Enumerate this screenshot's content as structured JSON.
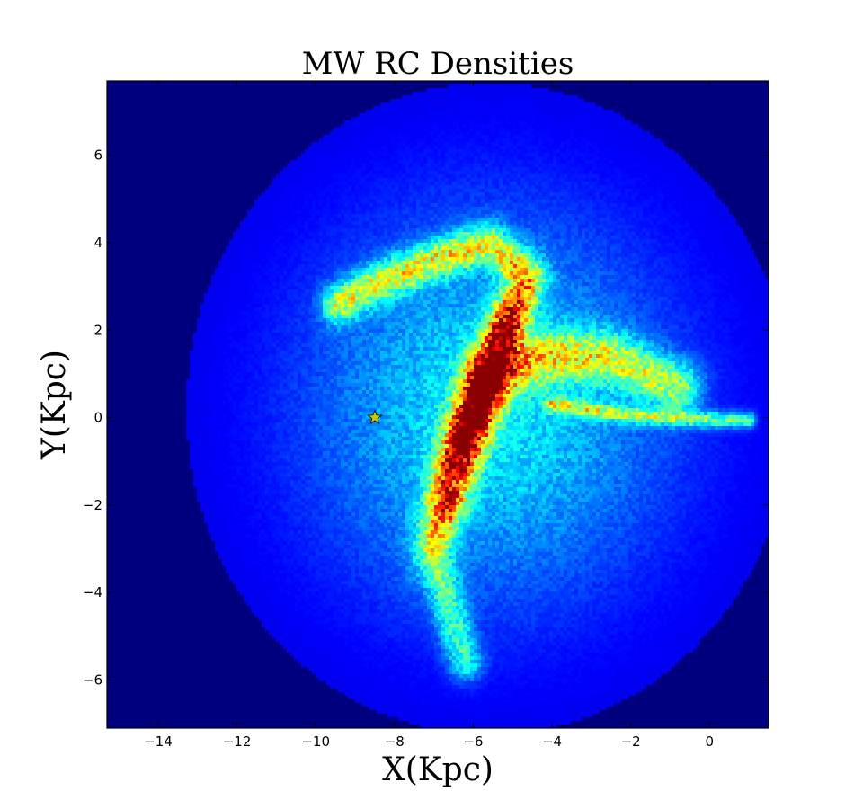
{
  "chart_data": {
    "type": "heatmap",
    "title": "MW RC Densities",
    "xlabel": "X(Kpc)",
    "ylabel": "Y(Kpc)",
    "xlim": [
      -15.3,
      1.5
    ],
    "ylim": [
      -7.1,
      7.7
    ],
    "x_ticks": [
      -14,
      -12,
      -10,
      -8,
      -6,
      -4,
      -2,
      0
    ],
    "y_ticks": [
      -6,
      -4,
      -2,
      0,
      2,
      4,
      6
    ],
    "x_tick_labels": [
      "−14",
      "−12",
      "−10",
      "−8",
      "−6",
      "−4",
      "−2",
      "0"
    ],
    "y_tick_labels": [
      "−6",
      "−4",
      "−2",
      "0",
      "2",
      "4",
      "6"
    ],
    "colormap": "jet",
    "background_color": "#00007f",
    "grid": false,
    "legend": "none",
    "features": [
      {
        "kind": "bar",
        "center": [
          -6.0,
          0.0
        ],
        "length_kpc": 5.0,
        "width_kpc": 0.7,
        "angle_deg": 68,
        "peak": 1.0
      },
      {
        "kind": "arm",
        "path": [
          [
            -5.2,
            2.0
          ],
          [
            -4.6,
            3.2
          ],
          [
            -5.6,
            4.0
          ],
          [
            -7.0,
            3.6
          ],
          [
            -8.6,
            3.0
          ],
          [
            -9.4,
            2.6
          ]
        ],
        "width_kpc": 0.6,
        "level": 0.45
      },
      {
        "kind": "arm",
        "path": [
          [
            -5.6,
            1.0
          ],
          [
            -4.0,
            1.4
          ],
          [
            -2.6,
            1.4
          ],
          [
            -1.6,
            1.0
          ],
          [
            -0.8,
            0.7
          ]
        ],
        "width_kpc": 0.8,
        "level": 0.4
      },
      {
        "kind": "arm",
        "path": [
          [
            -4.0,
            0.3
          ],
          [
            -2.0,
            0.05
          ],
          [
            0.0,
            -0.05
          ],
          [
            1.0,
            -0.05
          ]
        ],
        "width_kpc": 0.25,
        "level": 0.35
      },
      {
        "kind": "arm",
        "path": [
          [
            -6.6,
            -2.0
          ],
          [
            -7.0,
            -3.0
          ],
          [
            -6.6,
            -4.4
          ],
          [
            -6.2,
            -5.6
          ]
        ],
        "width_kpc": 0.6,
        "level": 0.3
      },
      {
        "kind": "halo",
        "center": [
          -5.6,
          0.2
        ],
        "sigma_kpc": [
          3.3,
          3.2
        ],
        "level": 0.3
      }
    ],
    "markers": [
      {
        "name": "Sun",
        "symbol": "star",
        "x": -8.5,
        "y": 0.0,
        "color": "#c8c800"
      }
    ]
  }
}
